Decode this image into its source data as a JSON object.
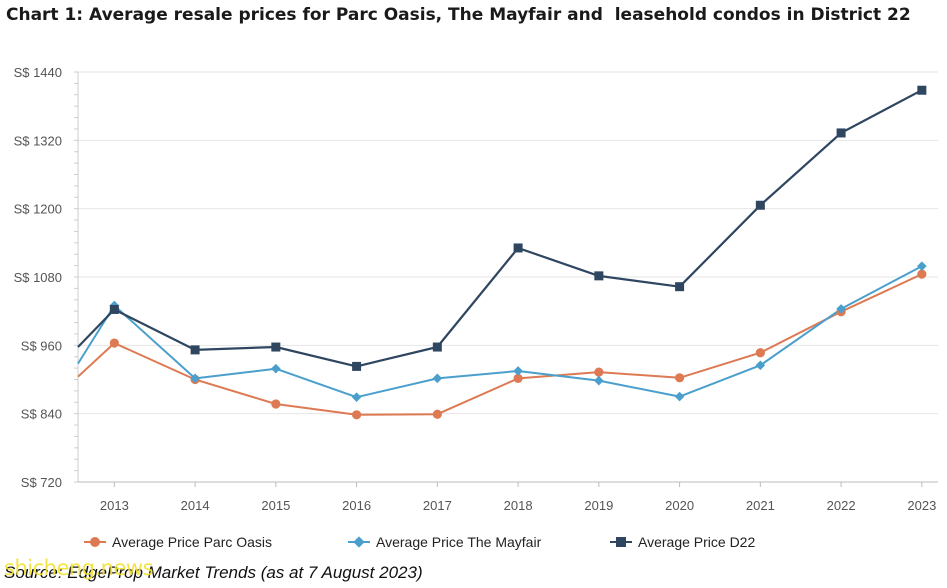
{
  "header": {
    "title": "Chart 1: Average resale prices for Parc Oasis, The Mayfair and  leasehold condos in District 22"
  },
  "footer": {
    "source": "Source: EdgeProp Market Trends (as at 7 August 2023)",
    "watermark": "shicheng.news"
  },
  "colors": {
    "parc_oasis": "#de7a53",
    "mayfair": "#4a9fcd",
    "d22": "#2f4661",
    "grid": "#e6e6e6",
    "axis_text": "#555555"
  },
  "chart_data": {
    "type": "line",
    "title": "Chart 1: Average resale prices for Parc Oasis, The Mayfair and  leasehold condos in District 22",
    "xlabel": "",
    "ylabel": "",
    "categories": [
      "2013",
      "2014",
      "2015",
      "2016",
      "2017",
      "2018",
      "2019",
      "2020",
      "2021",
      "2022",
      "2023"
    ],
    "x_range": [
      2012.55,
      2023.2
    ],
    "ylim": [
      720,
      1440
    ],
    "yticks": [
      720,
      840,
      960,
      1080,
      1200,
      1320,
      1440
    ],
    "ytick_labels": [
      "S$ 720",
      "S$ 840",
      "S$ 960",
      "S$ 1080",
      "S$ 1200",
      "S$ 1320",
      "S$ 1440"
    ],
    "grid": true,
    "legend_position": "bottom",
    "series": [
      {
        "name": "Average Price Parc Oasis",
        "color_key": "parc_oasis",
        "marker": "circle",
        "start_value": 905,
        "values": [
          964,
          900,
          857,
          838,
          839,
          902,
          913,
          903,
          947,
          1019,
          1085
        ]
      },
      {
        "name": "Average Price The Mayfair",
        "color_key": "mayfair",
        "marker": "diamond",
        "start_value": 928,
        "values": [
          1030,
          902,
          919,
          869,
          902,
          915,
          898,
          870,
          925,
          1024,
          1099
        ]
      },
      {
        "name": "Average Price D22",
        "color_key": "d22",
        "marker": "square",
        "start_value": 957,
        "values": [
          1023,
          952,
          957,
          923,
          957,
          1131,
          1082,
          1063,
          1206,
          1333,
          1408
        ]
      }
    ]
  }
}
